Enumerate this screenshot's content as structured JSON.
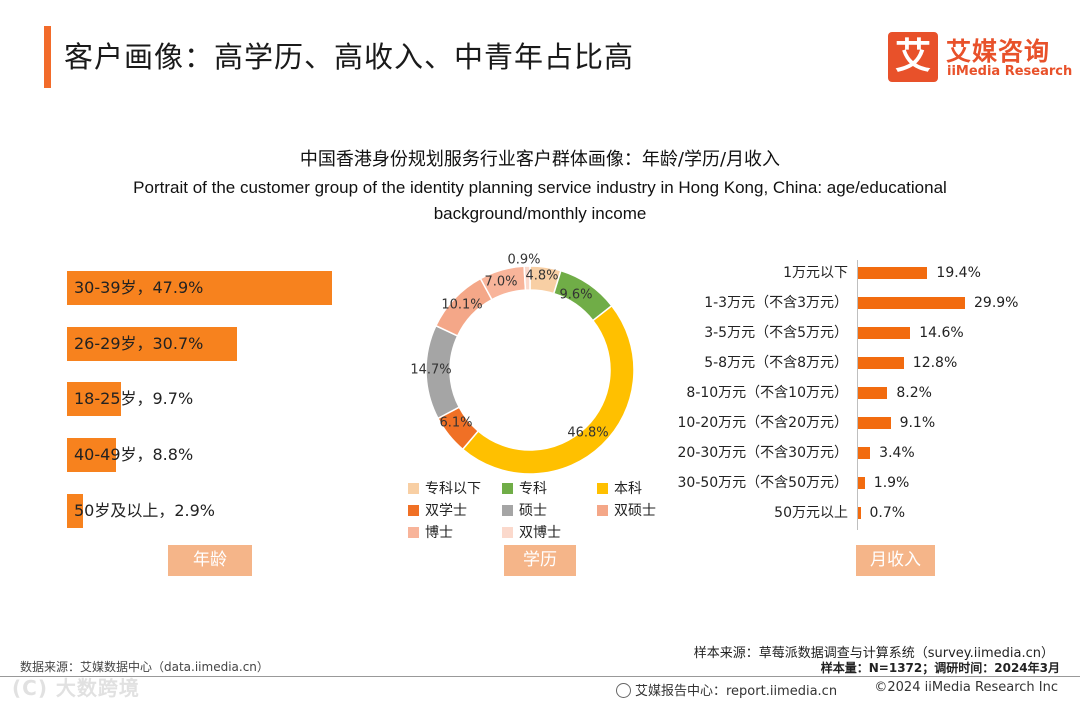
{
  "header": {
    "title": "客户画像：高学历、高收入、中青年占比高",
    "logo_mark": "艾",
    "logo_cn": "艾媒咨询",
    "logo_en": "iiMedia Research"
  },
  "chart_title_cn": "中国香港身份规划服务行业客户群体画像：年龄/学历/月收入",
  "chart_title_en": "Portrait of the customer group of the identity planning service industry in Hong Kong, China: age/educational background/monthly income",
  "colors": {
    "accent": "#f26b2a",
    "bar": "#f7821e",
    "tag": "#f5b589"
  },
  "chart_data": [
    {
      "type": "bar",
      "orientation": "horizontal",
      "title": "年龄",
      "unit": "%",
      "categories": [
        "30-39岁",
        "26-29岁",
        "18-25岁",
        "40-49岁",
        "50岁及以上"
      ],
      "values": [
        47.9,
        30.7,
        9.7,
        8.8,
        2.9
      ],
      "labels": [
        "30-39岁，47.9%",
        "26-29岁，30.7%",
        "18-25岁，9.7%",
        "40-49岁，8.8%",
        "50岁及以上，2.9%"
      ]
    },
    {
      "type": "pie",
      "title": "学历",
      "unit": "%",
      "categories": [
        "专科以下",
        "专科",
        "本科",
        "双学士",
        "硕士",
        "双硕士",
        "博士",
        "双博士"
      ],
      "values": [
        4.8,
        9.6,
        46.8,
        6.1,
        14.7,
        10.1,
        7.0,
        0.9
      ],
      "value_labels": [
        "4.8%",
        "9.6%",
        "46.8%",
        "6.1%",
        "14.7%",
        "10.1%",
        "7.0%",
        "0.9%"
      ],
      "colors": [
        "#f8cfa4",
        "#70ad47",
        "#ffc000",
        "#f07025",
        "#a5a5a5",
        "#f4a788",
        "#f8b49a",
        "#fbd9cc"
      ],
      "legend_position": "bottom"
    },
    {
      "type": "bar",
      "orientation": "horizontal",
      "title": "月收入",
      "unit": "%",
      "categories": [
        "1万元以下",
        "1-3万元（不含3万元）",
        "3-5万元（不含5万元）",
        "5-8万元（不含8万元）",
        "8-10万元（不含10万元）",
        "10-20万元（不含20万元）",
        "20-30万元（不含30万元）",
        "30-50万元（不含50万元）",
        "50万元以上"
      ],
      "values": [
        19.4,
        29.9,
        14.6,
        12.8,
        8.2,
        9.1,
        3.4,
        1.9,
        0.7
      ],
      "value_labels": [
        "19.4%",
        "29.9%",
        "14.6%",
        "12.8%",
        "8.2%",
        "9.1%",
        "3.4%",
        "1.9%",
        "0.7%"
      ]
    }
  ],
  "panel_tags": {
    "age": "年龄",
    "education": "学历",
    "income": "月收入"
  },
  "notes": {
    "sample_source": "样本来源：草莓派数据调查与计算系统（survey.iimedia.cn）",
    "sample_size": "样本量：N=1372；调研时间：2024年3月",
    "data_source": "数据来源：艾媒数据中心（data.iimedia.cn）"
  },
  "footer": {
    "report_center": "艾媒报告中心：report.iimedia.cn",
    "copyright": "©2024  iiMedia Research  Inc"
  },
  "watermark": "(C) 大数跨境"
}
